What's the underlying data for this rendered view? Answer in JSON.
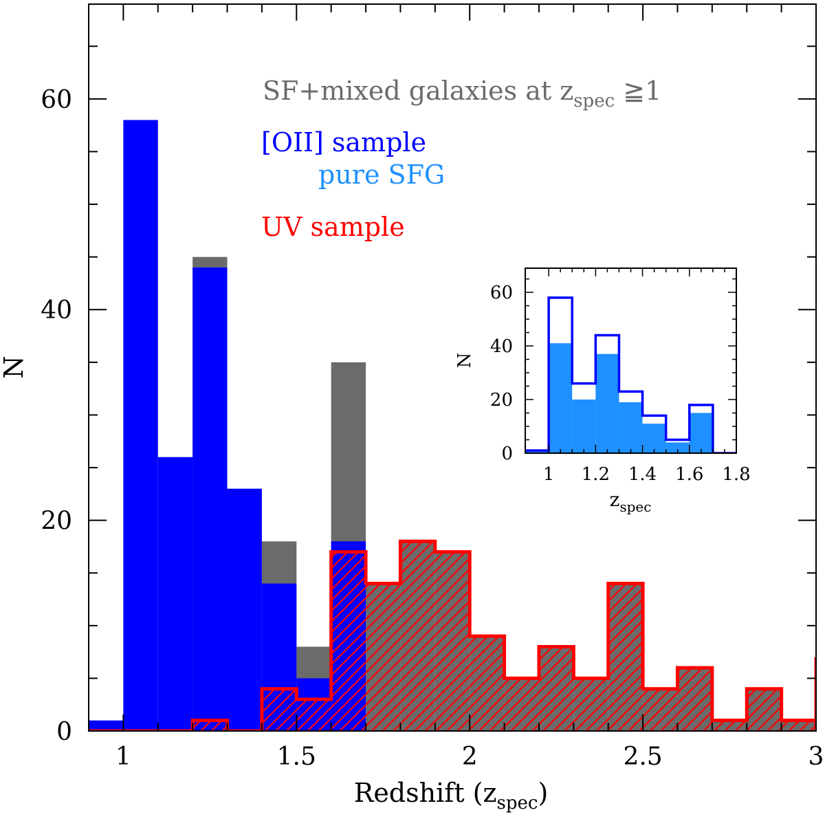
{
  "chart_data": [
    {
      "type": "bar",
      "subtype": "histogram",
      "xlabel": "Redshift (z",
      "xlabel_sub": "spec",
      "xlabel_close": ")",
      "ylabel": "N",
      "xlim": [
        0.9,
        3.0
      ],
      "ylim": [
        0,
        69
      ],
      "xticks": [
        1,
        1.5,
        2,
        2.5,
        3
      ],
      "xtick_labels": [
        "1",
        "1.5",
        "2",
        "2.5",
        "3"
      ],
      "yticks": [
        0,
        20,
        40,
        60
      ],
      "ytick_labels": [
        "0",
        "20",
        "40",
        "60"
      ],
      "bin_width": 0.1,
      "bins_left": [
        0.9,
        1.0,
        1.1,
        1.2,
        1.3,
        1.4,
        1.5,
        1.6,
        1.7,
        1.8,
        1.9,
        2.0,
        2.1,
        2.2,
        2.3,
        2.4,
        2.5,
        2.6,
        2.7,
        2.8,
        2.9
      ],
      "annotation": {
        "text": "SF+mixed galaxies at z",
        "sub": "spec",
        "suffix": " ≧1",
        "color": "#6b6b6b"
      },
      "series": [
        {
          "name": "SF+mixed galaxies at z_spec ≧1",
          "color": "#6b6b6b",
          "style": "filled",
          "values": [
            0,
            0,
            0,
            45,
            0,
            18,
            8,
            35,
            14,
            18,
            17,
            9,
            5,
            8,
            5,
            14,
            4,
            6,
            1,
            4,
            1
          ]
        },
        {
          "name": "[OII] sample",
          "color": "#0000ff",
          "style": "filled",
          "values": [
            1,
            58,
            26,
            44,
            23,
            14,
            5,
            18,
            0,
            0,
            0,
            0,
            0,
            0,
            0,
            0,
            0,
            0,
            0,
            0,
            0
          ]
        },
        {
          "name": "UV sample",
          "color": "#ff0000",
          "style": "hatched-outline",
          "values": [
            0,
            0,
            0,
            1,
            0,
            4,
            3,
            17,
            14,
            18,
            17,
            9,
            5,
            8,
            5,
            14,
            4,
            6,
            1,
            4,
            1
          ]
        }
      ],
      "legend": [
        {
          "text": "[OII] sample",
          "color": "#0000ff"
        },
        {
          "text": "pure SFG",
          "color": "#1e90ff"
        },
        {
          "text": "UV sample",
          "color": "#ff0000"
        }
      ]
    },
    {
      "type": "bar",
      "subtype": "histogram-inset",
      "xlabel": "z",
      "xlabel_sub": "spec",
      "ylabel": "N",
      "xlim": [
        0.9,
        1.8
      ],
      "ylim": [
        0,
        69
      ],
      "xticks": [
        1,
        1.2,
        1.4,
        1.6,
        1.8
      ],
      "xtick_labels": [
        "1",
        "1.2",
        "1.4",
        "1.6",
        "1.8"
      ],
      "yticks": [
        0,
        20,
        40,
        60
      ],
      "ytick_labels": [
        "0",
        "20",
        "40",
        "60"
      ],
      "bin_width": 0.1,
      "bins_left": [
        0.9,
        1.0,
        1.1,
        1.2,
        1.3,
        1.4,
        1.5,
        1.6,
        1.7
      ],
      "series": [
        {
          "name": "[OII] sample",
          "color": "#0000ff",
          "style": "outline",
          "values": [
            1,
            58,
            26,
            44,
            23,
            14,
            5,
            18,
            0
          ]
        },
        {
          "name": "pure SFG",
          "color": "#1e90ff",
          "style": "filled",
          "values": [
            1,
            41,
            20,
            37,
            19,
            11,
            4,
            15,
            0
          ]
        }
      ]
    }
  ]
}
